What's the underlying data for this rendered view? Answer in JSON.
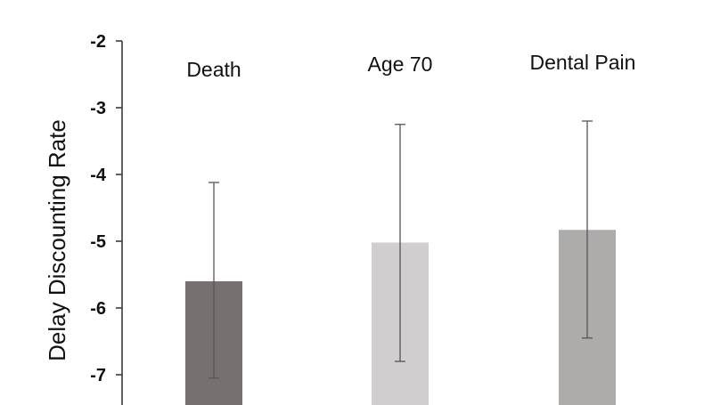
{
  "chart_data": {
    "type": "bar",
    "title": "",
    "xlabel": "",
    "ylabel": "Delay Discounting Rate",
    "ylim": [
      -7.45,
      -2
    ],
    "yticks": [
      -2,
      -3,
      -4,
      -5,
      -6,
      -7
    ],
    "ytick_labels": [
      "-2",
      "-3",
      "-4",
      "-5",
      "-6",
      "-7"
    ],
    "categories": [
      "Death",
      "Age 70",
      "Dental Pain"
    ],
    "values": [
      -5.6,
      -5.02,
      -4.83
    ],
    "error_low": [
      -7.05,
      -6.8,
      -6.45
    ],
    "error_high": [
      -4.12,
      -3.25,
      -3.2
    ],
    "bar_colors": [
      "#767170",
      "#d0cece",
      "#aeabab"
    ],
    "grid": false,
    "legend": "none"
  }
}
